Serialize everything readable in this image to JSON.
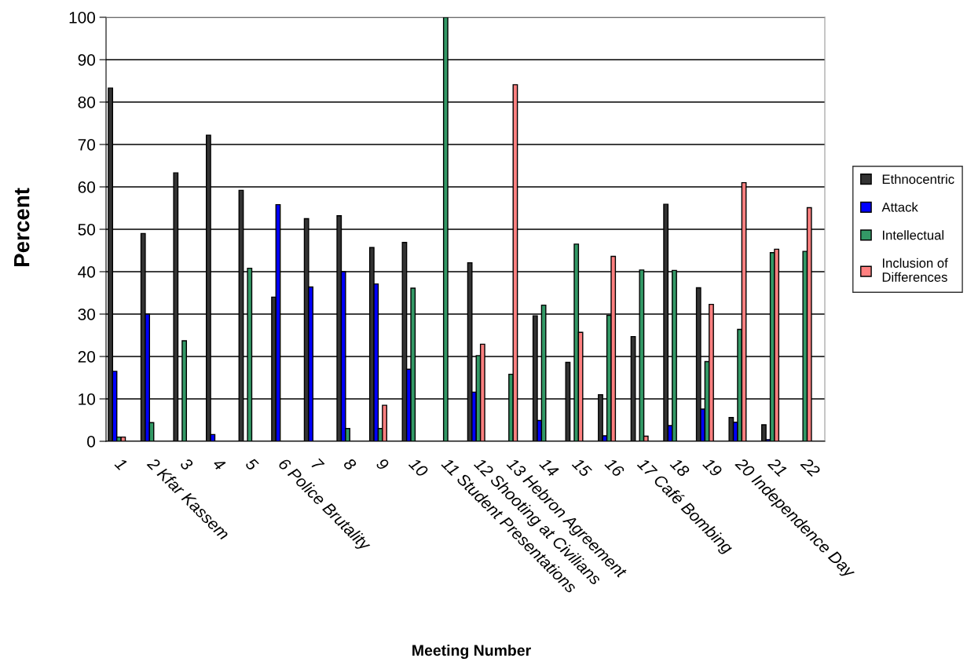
{
  "chart_data": {
    "type": "bar",
    "xlabel": "Meeting Number",
    "ylabel": "Percent",
    "categories": [
      "1",
      "2 Kfar Kassem",
      "3",
      "4",
      "5",
      "6 Police Brutality",
      "7",
      "8",
      "9",
      "10",
      "11 Student Presentations",
      "12 Shooting at Civilians",
      "13 Hebron Agreement",
      "14",
      "15",
      "16",
      "17 Café Bombing",
      "18",
      "19",
      "20 Independence Day",
      "21",
      "22"
    ],
    "series": [
      {
        "name": "Ethnocentric",
        "color": "#333333",
        "values": [
          83.3,
          49,
          63.3,
          72.2,
          59.2,
          34,
          52.5,
          53.2,
          45.7,
          46.9,
          null,
          42.1,
          null,
          29.6,
          18.6,
          11,
          24.7,
          55.9,
          36.2,
          5.6,
          3.9,
          null
        ]
      },
      {
        "name": "Attack",
        "color": "#0000ff",
        "values": [
          16.5,
          30,
          null,
          1.6,
          null,
          55.8,
          36.4,
          40,
          37.1,
          17,
          null,
          11.6,
          null,
          4.9,
          null,
          1.3,
          null,
          3.7,
          7.6,
          4.5,
          0.4,
          null
        ]
      },
      {
        "name": "Intellectual",
        "color": "#339966",
        "values": [
          1,
          4.4,
          23.7,
          null,
          40.8,
          null,
          null,
          3,
          3,
          36.1,
          100,
          20.2,
          15.8,
          32.1,
          46.5,
          29.7,
          40.4,
          40.3,
          18.8,
          26.4,
          44.5,
          44.8
        ]
      },
      {
        "name": "Inclusion of\nDifferences",
        "color": "#ff8080",
        "values": [
          1,
          null,
          null,
          null,
          null,
          null,
          null,
          null,
          8.5,
          null,
          null,
          22.9,
          84.1,
          null,
          25.7,
          43.6,
          1.2,
          null,
          32.3,
          61,
          45.3,
          55.1
        ]
      }
    ],
    "ylim": [
      0,
      100
    ],
    "yticks": [
      0,
      10,
      20,
      30,
      40,
      50,
      60,
      70,
      80,
      90,
      100
    ],
    "grid": "y",
    "legend": "right"
  }
}
